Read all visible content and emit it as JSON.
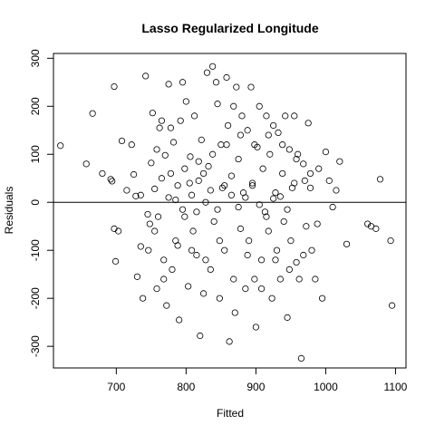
{
  "chart_data": {
    "type": "scatter",
    "title": "Lasso Regularized Longitude",
    "xlabel": "Fitted",
    "ylabel": "Residuals",
    "xlim": [
      610,
      1115
    ],
    "ylim": [
      -345,
      310
    ],
    "xticks": [
      700,
      800,
      900,
      1000,
      1100
    ],
    "yticks": [
      -300,
      -200,
      -100,
      0,
      100,
      200,
      300
    ],
    "hline": 0,
    "grid": false,
    "marker": "open-circle",
    "series": [
      {
        "points": [
          [
            620,
            118
          ],
          [
            657,
            80
          ],
          [
            666,
            185
          ],
          [
            680,
            60
          ],
          [
            692,
            48
          ],
          [
            694,
            44
          ],
          [
            697,
            241
          ],
          [
            697,
            -55
          ],
          [
            699,
            -123
          ],
          [
            703,
            -60
          ],
          [
            708,
            128
          ],
          [
            715,
            25
          ],
          [
            722,
            120
          ],
          [
            728,
            13
          ],
          [
            730,
            -155
          ],
          [
            735,
            -92
          ],
          [
            738,
            -200
          ],
          [
            742,
            263
          ],
          [
            746,
            -100
          ],
          [
            750,
            82
          ],
          [
            752,
            186
          ],
          [
            755,
            28
          ],
          [
            758,
            -180
          ],
          [
            760,
            -30
          ],
          [
            762,
            155
          ],
          [
            765,
            170
          ],
          [
            768,
            -120
          ],
          [
            770,
            98
          ],
          [
            772,
            -215
          ],
          [
            775,
            246
          ],
          [
            778,
            60
          ],
          [
            780,
            -140
          ],
          [
            782,
            125
          ],
          [
            785,
            -80
          ],
          [
            788,
            35
          ],
          [
            790,
            -245
          ],
          [
            792,
            170
          ],
          [
            795,
            250
          ],
          [
            798,
            -30
          ],
          [
            800,
            210
          ],
          [
            803,
            -175
          ],
          [
            806,
            95
          ],
          [
            808,
            15
          ],
          [
            810,
            -60
          ],
          [
            812,
            180
          ],
          [
            815,
            -110
          ],
          [
            818,
            45
          ],
          [
            820,
            -278
          ],
          [
            822,
            130
          ],
          [
            825,
            -190
          ],
          [
            828,
            0
          ],
          [
            830,
            270
          ],
          [
            832,
            75
          ],
          [
            835,
            -140
          ],
          [
            838,
            283
          ],
          [
            840,
            -40
          ],
          [
            843,
            250
          ],
          [
            845,
            205
          ],
          [
            848,
            -200
          ],
          [
            850,
            120
          ],
          [
            852,
            30
          ],
          [
            855,
            -100
          ],
          [
            858,
            260
          ],
          [
            860,
            160
          ],
          [
            862,
            -290
          ],
          [
            865,
            55
          ],
          [
            868,
            200
          ],
          [
            870,
            -230
          ],
          [
            872,
            240
          ],
          [
            875,
            90
          ],
          [
            878,
            -55
          ],
          [
            880,
            180
          ],
          [
            882,
            20
          ],
          [
            885,
            -180
          ],
          [
            888,
            150
          ],
          [
            890,
            -80
          ],
          [
            893,
            240
          ],
          [
            895,
            40
          ],
          [
            898,
            -160
          ],
          [
            900,
            -260
          ],
          [
            902,
            115
          ],
          [
            905,
            200
          ],
          [
            908,
            -120
          ],
          [
            910,
            70
          ],
          [
            913,
            -20
          ],
          [
            915,
            180
          ],
          [
            918,
            -60
          ],
          [
            920,
            100
          ],
          [
            923,
            -200
          ],
          [
            925,
            160
          ],
          [
            928,
            20
          ],
          [
            930,
            -100
          ],
          [
            932,
            145
          ],
          [
            935,
            -160
          ],
          [
            938,
            60
          ],
          [
            940,
            -40
          ],
          [
            942,
            180
          ],
          [
            945,
            -240
          ],
          [
            948,
            110
          ],
          [
            950,
            -80
          ],
          [
            952,
            30
          ],
          [
            955,
            180
          ],
          [
            958,
            -125
          ],
          [
            960,
            100
          ],
          [
            962,
            -160
          ],
          [
            965,
            -325
          ],
          [
            968,
            80
          ],
          [
            970,
            45
          ],
          [
            972,
            -50
          ],
          [
            975,
            165
          ],
          [
            978,
            30
          ],
          [
            980,
            -100
          ],
          [
            985,
            -160
          ],
          [
            988,
            -45
          ],
          [
            990,
            70
          ],
          [
            995,
            -200
          ],
          [
            1000,
            105
          ],
          [
            1005,
            45
          ],
          [
            1010,
            -10
          ],
          [
            1015,
            25
          ],
          [
            1020,
            85
          ],
          [
            1030,
            -87
          ],
          [
            1060,
            -45
          ],
          [
            1065,
            -50
          ],
          [
            1072,
            -55
          ],
          [
            1078,
            48
          ],
          [
            1093,
            -80
          ],
          [
            1095,
            -215
          ],
          [
            725,
            58
          ],
          [
            735,
            15
          ],
          [
            745,
            -25
          ],
          [
            755,
            -60
          ],
          [
            765,
            50
          ],
          [
            775,
            10
          ],
          [
            785,
            5
          ],
          [
            795,
            -15
          ],
          [
            805,
            40
          ],
          [
            815,
            -20
          ],
          [
            825,
            60
          ],
          [
            835,
            25
          ],
          [
            845,
            -15
          ],
          [
            855,
            35
          ],
          [
            865,
            15
          ],
          [
            875,
            -10
          ],
          [
            885,
            10
          ],
          [
            895,
            35
          ],
          [
            905,
            -5
          ],
          [
            915,
            -30
          ],
          [
            925,
            8
          ],
          [
            935,
            12
          ],
          [
            945,
            -15
          ],
          [
            955,
            40
          ],
          [
            748,
            -45
          ],
          [
            758,
            110
          ],
          [
            768,
            -160
          ],
          [
            778,
            155
          ],
          [
            788,
            -90
          ],
          [
            798,
            70
          ],
          [
            808,
            -100
          ],
          [
            818,
            85
          ],
          [
            828,
            -120
          ],
          [
            838,
            100
          ],
          [
            848,
            -80
          ],
          [
            858,
            120
          ],
          [
            868,
            -160
          ],
          [
            878,
            140
          ],
          [
            888,
            -110
          ],
          [
            898,
            120
          ],
          [
            908,
            -180
          ],
          [
            918,
            140
          ],
          [
            928,
            -120
          ],
          [
            938,
            120
          ],
          [
            948,
            -140
          ],
          [
            958,
            90
          ],
          [
            968,
            -110
          ],
          [
            978,
            60
          ]
        ]
      }
    ]
  }
}
